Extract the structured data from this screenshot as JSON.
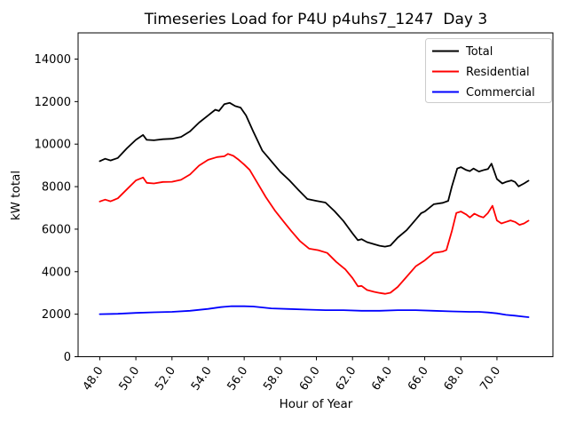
{
  "chart_data": {
    "type": "line",
    "title": "Timeseries Load for P4U p4uhs7_1247  Day 3",
    "xlabel": "Hour of Year",
    "ylabel": "kW total",
    "xlim": [
      46.8,
      73.1
    ],
    "ylim": [
      0,
      15233
    ],
    "grid": false,
    "legend_position": "upper right",
    "xticks": [
      48,
      50,
      52,
      54,
      56,
      58,
      60,
      62,
      64,
      66,
      68,
      70
    ],
    "xtick_labels": [
      "48.0",
      "50.0",
      "52.0",
      "54.0",
      "56.0",
      "58.0",
      "60.0",
      "62.0",
      "64.0",
      "66.0",
      "68.0",
      "70.0"
    ],
    "yticks": [
      0,
      2000,
      4000,
      6000,
      8000,
      10000,
      12000,
      14000
    ],
    "ytick_labels": [
      "0",
      "2000",
      "4000",
      "6000",
      "8000",
      "10000",
      "12000",
      "14000"
    ],
    "series": [
      {
        "name": "Total",
        "color": "#000000",
        "points": [
          [
            48.0,
            9200
          ],
          [
            48.3,
            9310
          ],
          [
            48.6,
            9230
          ],
          [
            49.0,
            9350
          ],
          [
            49.5,
            9800
          ],
          [
            50.0,
            10200
          ],
          [
            50.4,
            10430
          ],
          [
            50.6,
            10200
          ],
          [
            51.0,
            10180
          ],
          [
            51.5,
            10230
          ],
          [
            52.0,
            10250
          ],
          [
            52.5,
            10340
          ],
          [
            53.0,
            10600
          ],
          [
            53.5,
            11010
          ],
          [
            54.0,
            11350
          ],
          [
            54.4,
            11620
          ],
          [
            54.6,
            11560
          ],
          [
            54.9,
            11880
          ],
          [
            55.2,
            11940
          ],
          [
            55.5,
            11790
          ],
          [
            55.8,
            11720
          ],
          [
            56.1,
            11350
          ],
          [
            56.5,
            10600
          ],
          [
            57.0,
            9700
          ],
          [
            57.3,
            9400
          ],
          [
            57.6,
            9100
          ],
          [
            58.0,
            8700
          ],
          [
            58.5,
            8300
          ],
          [
            59.0,
            7850
          ],
          [
            59.5,
            7420
          ],
          [
            60.0,
            7330
          ],
          [
            60.5,
            7250
          ],
          [
            61.0,
            6850
          ],
          [
            61.5,
            6380
          ],
          [
            62.0,
            5800
          ],
          [
            62.3,
            5480
          ],
          [
            62.5,
            5530
          ],
          [
            62.8,
            5390
          ],
          [
            63.2,
            5290
          ],
          [
            63.5,
            5220
          ],
          [
            63.8,
            5180
          ],
          [
            64.1,
            5230
          ],
          [
            64.5,
            5600
          ],
          [
            65.0,
            5950
          ],
          [
            65.5,
            6450
          ],
          [
            65.8,
            6750
          ],
          [
            66.0,
            6830
          ],
          [
            66.5,
            7170
          ],
          [
            67.0,
            7240
          ],
          [
            67.3,
            7330
          ],
          [
            67.5,
            8000
          ],
          [
            67.8,
            8850
          ],
          [
            68.0,
            8920
          ],
          [
            68.3,
            8780
          ],
          [
            68.5,
            8730
          ],
          [
            68.7,
            8850
          ],
          [
            69.0,
            8710
          ],
          [
            69.3,
            8790
          ],
          [
            69.5,
            8830
          ],
          [
            69.7,
            9080
          ],
          [
            70.0,
            8360
          ],
          [
            70.3,
            8150
          ],
          [
            70.5,
            8220
          ],
          [
            70.8,
            8290
          ],
          [
            71.0,
            8220
          ],
          [
            71.2,
            8010
          ],
          [
            71.5,
            8150
          ],
          [
            71.75,
            8280
          ]
        ]
      },
      {
        "name": "Residential",
        "color": "#ff0000",
        "points": [
          [
            48.0,
            7300
          ],
          [
            48.3,
            7390
          ],
          [
            48.6,
            7310
          ],
          [
            49.0,
            7450
          ],
          [
            49.5,
            7870
          ],
          [
            50.0,
            8290
          ],
          [
            50.4,
            8430
          ],
          [
            50.6,
            8180
          ],
          [
            51.0,
            8150
          ],
          [
            51.5,
            8220
          ],
          [
            52.0,
            8230
          ],
          [
            52.5,
            8320
          ],
          [
            53.0,
            8570
          ],
          [
            53.5,
            8990
          ],
          [
            54.0,
            9260
          ],
          [
            54.5,
            9390
          ],
          [
            54.9,
            9430
          ],
          [
            55.1,
            9540
          ],
          [
            55.4,
            9450
          ],
          [
            55.7,
            9260
          ],
          [
            56.0,
            9040
          ],
          [
            56.3,
            8790
          ],
          [
            56.7,
            8220
          ],
          [
            57.2,
            7500
          ],
          [
            57.7,
            6880
          ],
          [
            58.2,
            6340
          ],
          [
            58.6,
            5920
          ],
          [
            59.1,
            5430
          ],
          [
            59.6,
            5080
          ],
          [
            60.1,
            5010
          ],
          [
            60.6,
            4880
          ],
          [
            61.1,
            4460
          ],
          [
            61.6,
            4110
          ],
          [
            62.0,
            3700
          ],
          [
            62.3,
            3310
          ],
          [
            62.5,
            3330
          ],
          [
            62.8,
            3140
          ],
          [
            63.2,
            3050
          ],
          [
            63.5,
            3000
          ],
          [
            63.8,
            2960
          ],
          [
            64.1,
            3010
          ],
          [
            64.5,
            3280
          ],
          [
            65.0,
            3760
          ],
          [
            65.5,
            4250
          ],
          [
            66.0,
            4530
          ],
          [
            66.5,
            4880
          ],
          [
            67.0,
            4950
          ],
          [
            67.2,
            5020
          ],
          [
            67.5,
            5900
          ],
          [
            67.75,
            6760
          ],
          [
            68.0,
            6830
          ],
          [
            68.3,
            6690
          ],
          [
            68.5,
            6550
          ],
          [
            68.75,
            6730
          ],
          [
            69.0,
            6620
          ],
          [
            69.25,
            6550
          ],
          [
            69.5,
            6760
          ],
          [
            69.75,
            7100
          ],
          [
            70.0,
            6410
          ],
          [
            70.25,
            6270
          ],
          [
            70.5,
            6340
          ],
          [
            70.75,
            6410
          ],
          [
            71.0,
            6340
          ],
          [
            71.25,
            6200
          ],
          [
            71.5,
            6270
          ],
          [
            71.75,
            6400
          ]
        ]
      },
      {
        "name": "Commercial",
        "color": "#0000ff",
        "points": [
          [
            48.0,
            2000
          ],
          [
            49.0,
            2020
          ],
          [
            50.0,
            2060
          ],
          [
            51.0,
            2090
          ],
          [
            52.0,
            2110
          ],
          [
            53.0,
            2160
          ],
          [
            54.0,
            2250
          ],
          [
            54.7,
            2330
          ],
          [
            55.3,
            2380
          ],
          [
            56.0,
            2375
          ],
          [
            56.5,
            2360
          ],
          [
            57.5,
            2275
          ],
          [
            58.5,
            2245
          ],
          [
            59.5,
            2215
          ],
          [
            60.5,
            2190
          ],
          [
            61.5,
            2190
          ],
          [
            62.5,
            2160
          ],
          [
            63.5,
            2160
          ],
          [
            64.5,
            2190
          ],
          [
            65.5,
            2190
          ],
          [
            66.5,
            2160
          ],
          [
            67.5,
            2130
          ],
          [
            68.5,
            2110
          ],
          [
            69.0,
            2110
          ],
          [
            69.5,
            2080
          ],
          [
            70.0,
            2040
          ],
          [
            70.5,
            1970
          ],
          [
            71.0,
            1930
          ],
          [
            71.5,
            1880
          ],
          [
            71.75,
            1860
          ]
        ]
      }
    ]
  },
  "legend": {
    "entries": [
      "Total",
      "Residential",
      "Commercial"
    ]
  }
}
